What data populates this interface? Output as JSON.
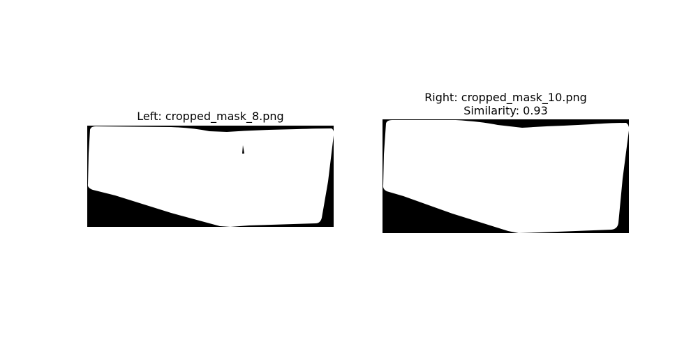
{
  "figure": {
    "left": {
      "title": "Left: cropped_mask_8.png"
    },
    "right": {
      "title_line1": "Right: cropped_mask_10.png",
      "title_line2": "Similarity: 0.93"
    }
  },
  "colors": {
    "background": "#ffffff",
    "mask_background": "#000000",
    "mask_foreground": "#ffffff"
  }
}
